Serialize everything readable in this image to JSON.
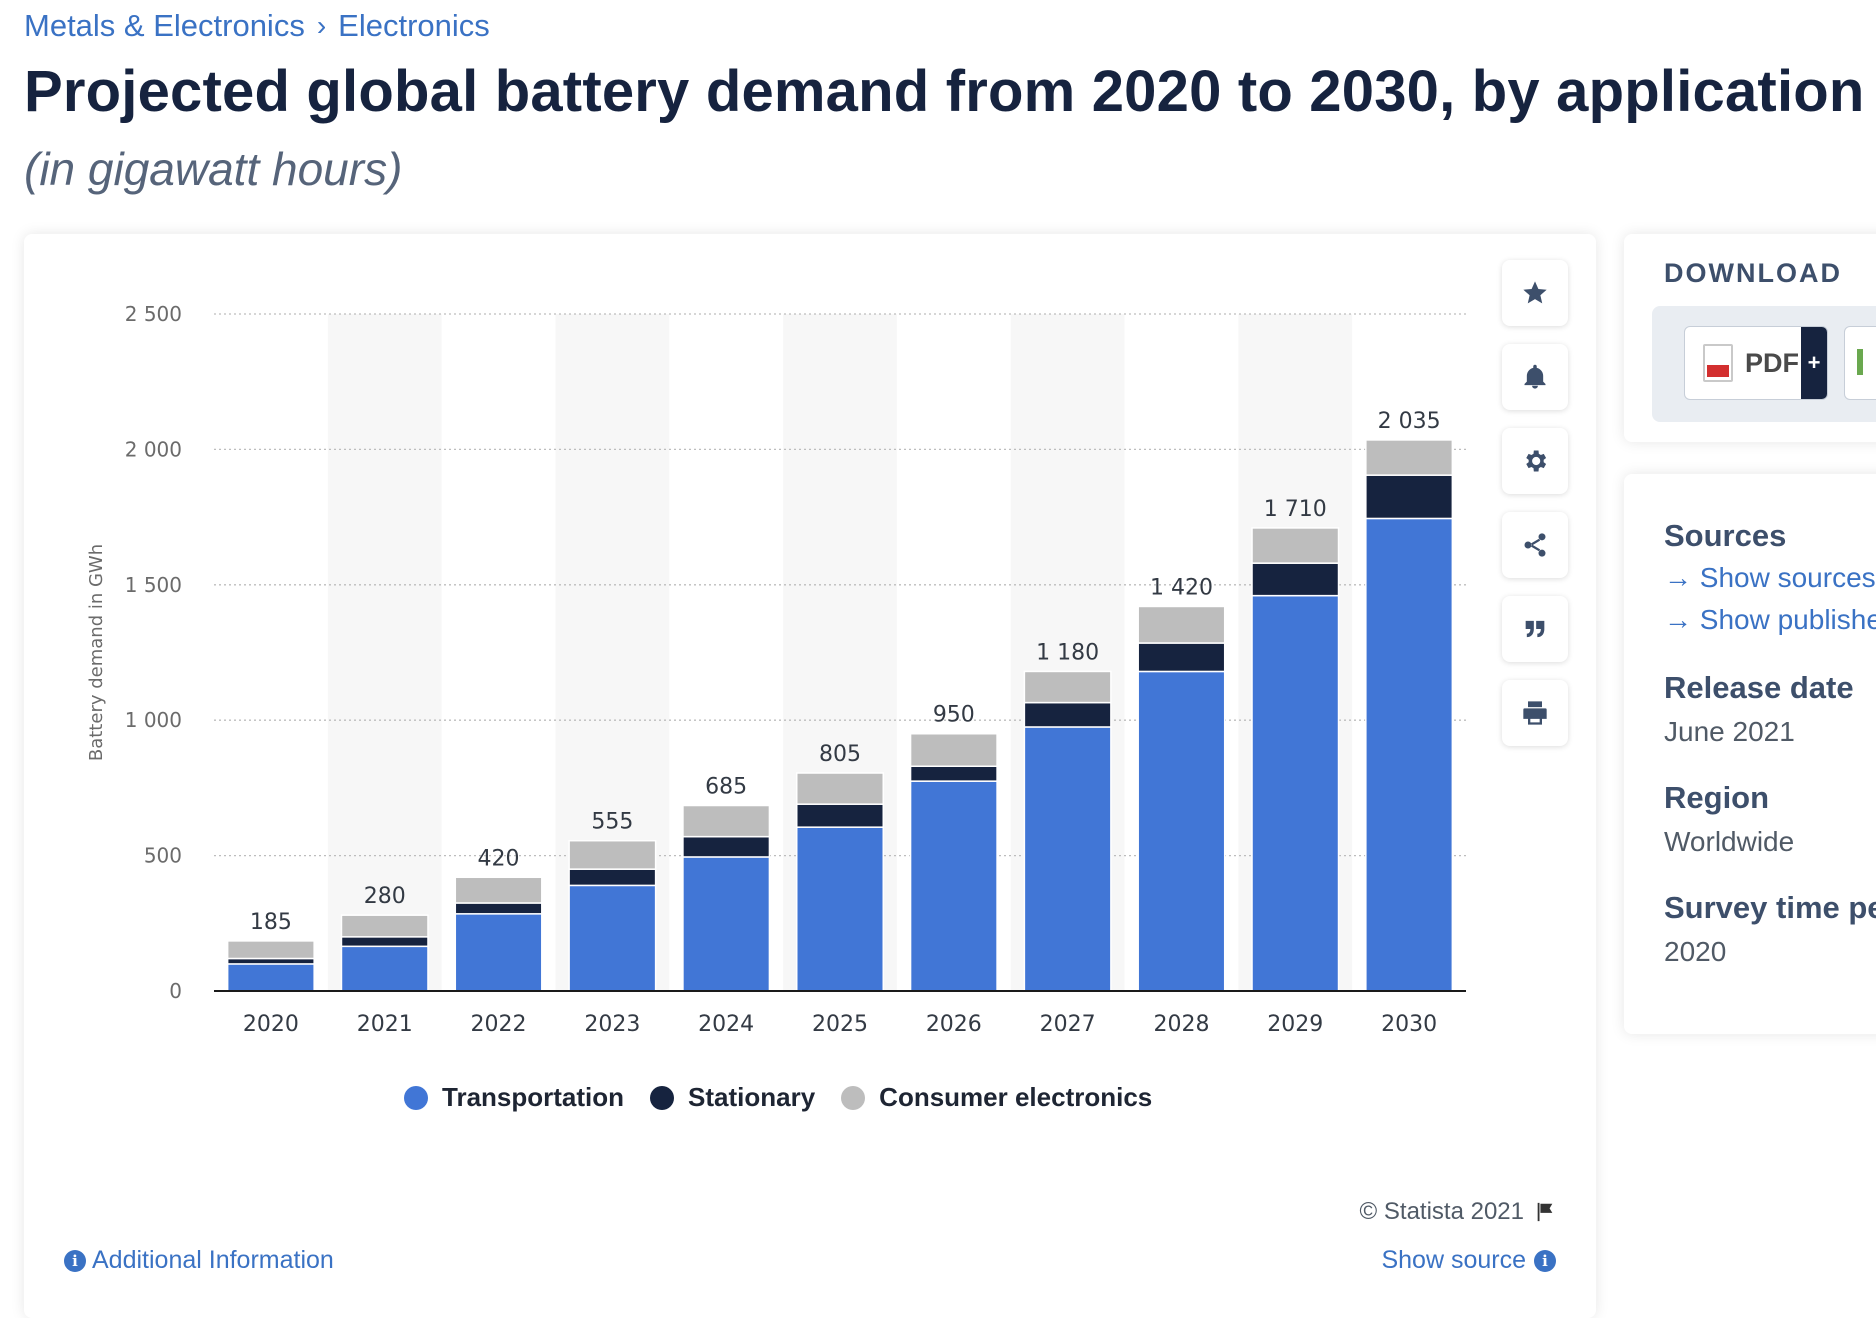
{
  "breadcrumb": {
    "items": [
      "Metals & Electronics",
      "Electronics"
    ],
    "separator": "›"
  },
  "title": "Projected global battery demand from 2020 to 2030, by application",
  "subtitle": "(in gigawatt hours)",
  "chart_data": {
    "type": "bar",
    "stacked": true,
    "categories": [
      "2020",
      "2021",
      "2022",
      "2023",
      "2024",
      "2025",
      "2026",
      "2027",
      "2028",
      "2029",
      "2030"
    ],
    "series": [
      {
        "name": "Transportation",
        "color": "#4176d6",
        "values": [
          100,
          165,
          285,
          390,
          495,
          605,
          775,
          975,
          1180,
          1460,
          1745
        ]
      },
      {
        "name": "Stationary",
        "color": "#16233f",
        "values": [
          20,
          35,
          40,
          60,
          75,
          85,
          55,
          90,
          105,
          120,
          160
        ]
      },
      {
        "name": "Consumer electronics",
        "color": "#bdbdbd",
        "values": [
          65,
          80,
          95,
          105,
          115,
          115,
          120,
          115,
          135,
          130,
          130
        ]
      }
    ],
    "totals": [
      "185",
      "280",
      "420",
      "555",
      "685",
      "805",
      "950",
      "1 180",
      "1 420",
      "1 710",
      "2 035"
    ],
    "ylabel": "Battery demand in GWh",
    "ylim": [
      0,
      2500
    ],
    "yticks": [
      0,
      500,
      1000,
      1500,
      2000,
      2500
    ],
    "ytick_labels": [
      "0",
      "500",
      "1 000",
      "1 500",
      "2 000",
      "2 500"
    ],
    "grid": true,
    "legend_position": "bottom-center"
  },
  "legend": [
    "Transportation",
    "Stationary",
    "Consumer electronics"
  ],
  "tools": [
    "star-icon",
    "bell-icon",
    "gear-icon",
    "share-icon",
    "quote-icon",
    "print-icon"
  ],
  "footer": {
    "copyright": "© Statista 2021",
    "additional_info": "Additional Information",
    "show_source": "Show source"
  },
  "download": {
    "title": "DOWNLOAD",
    "pdf_label": "PDF",
    "plus": "+"
  },
  "meta": {
    "sources_heading": "Sources",
    "show_sources": "Show sources",
    "show_publisher": "Show publishe",
    "release_heading": "Release date",
    "release_value": "June 2021",
    "region_heading": "Region",
    "region_value": "Worldwide",
    "survey_heading": "Survey time pe",
    "survey_value": "2020"
  },
  "colors": {
    "accent_link": "#3a72c4",
    "title": "#16233f"
  }
}
